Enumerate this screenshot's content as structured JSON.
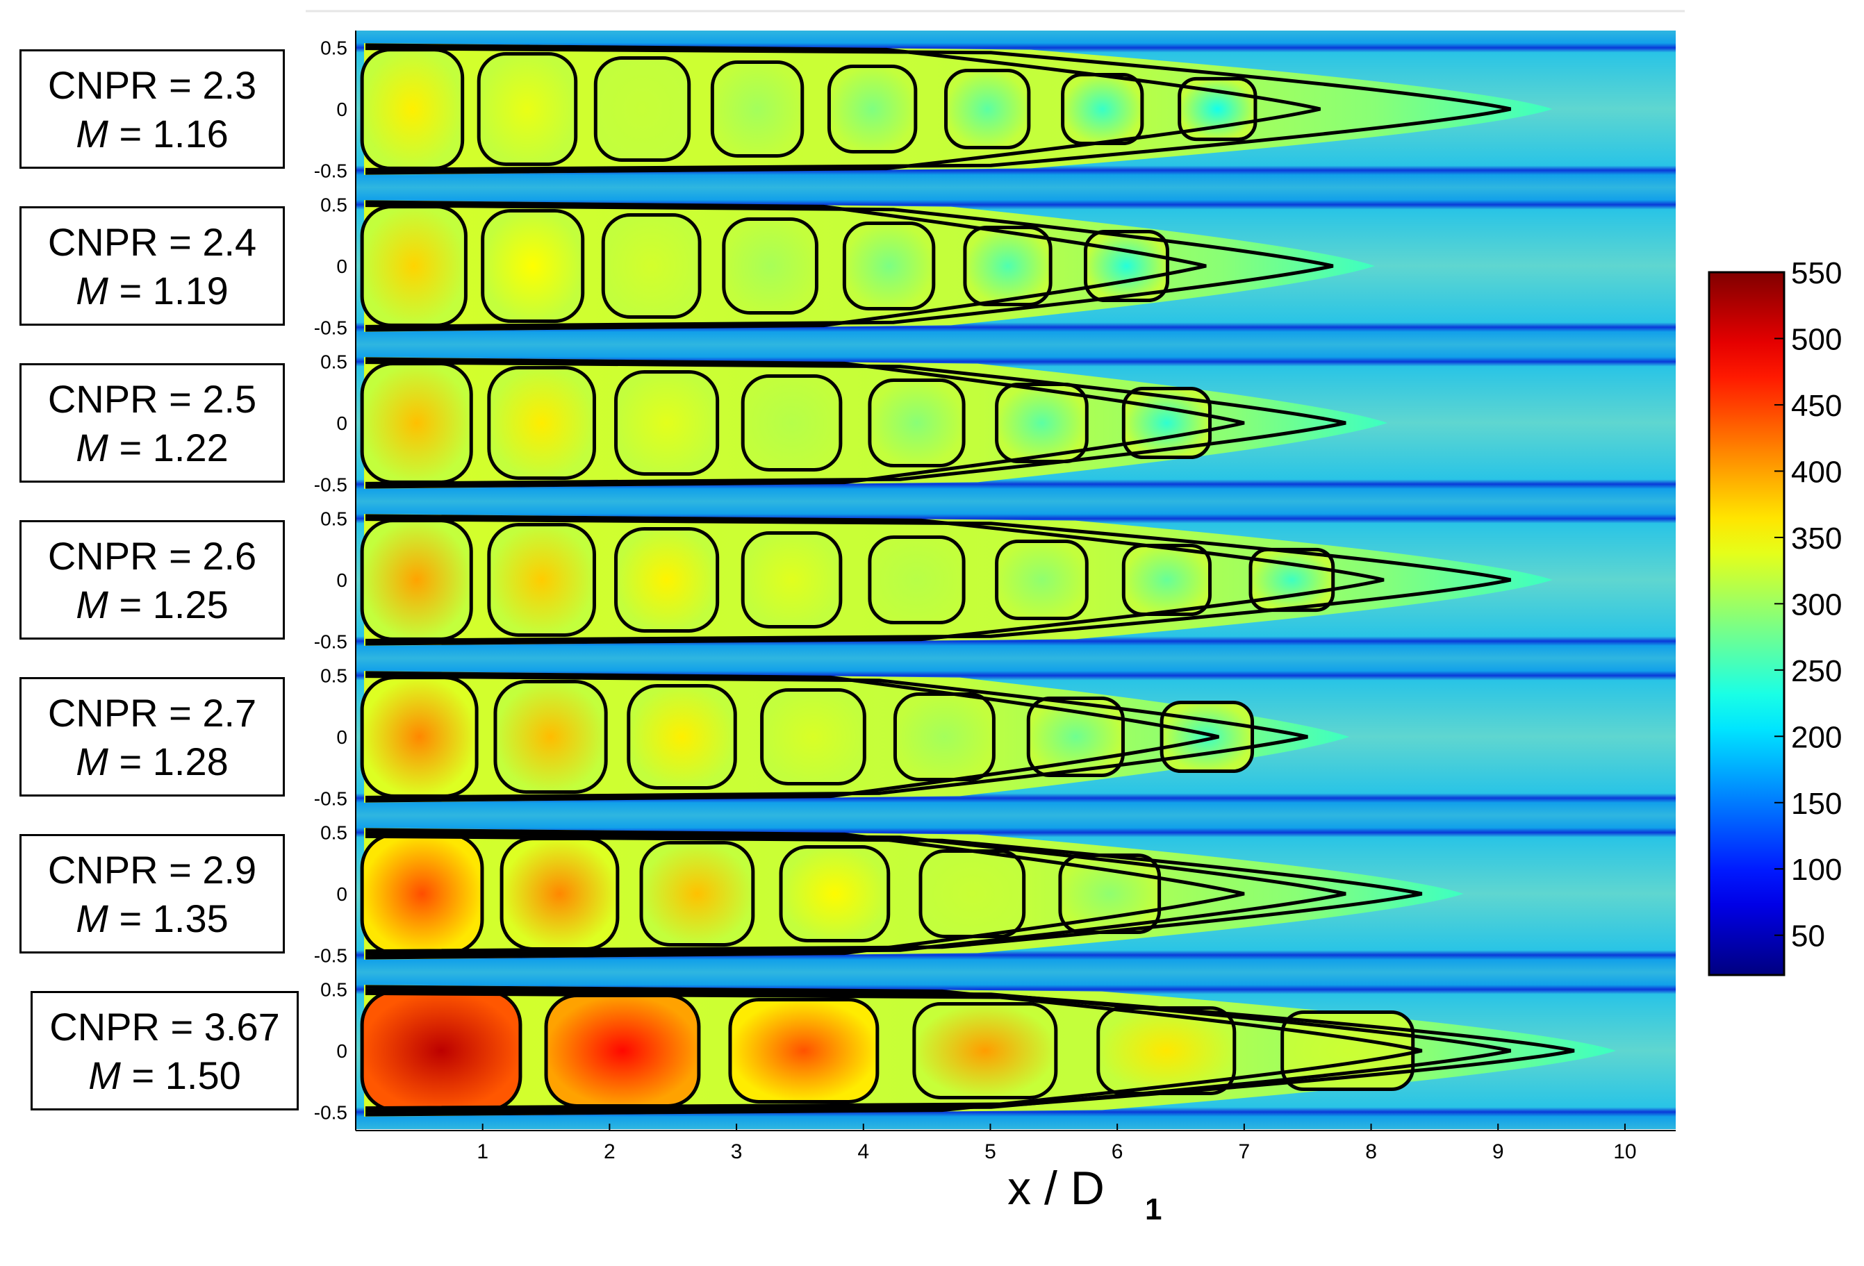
{
  "chart_data": {
    "type": "heatmap",
    "title": "",
    "xlabel": "x / D",
    "xlabel_sub": "1",
    "ylabel": "",
    "xlim": [
      0,
      10.4
    ],
    "ylim": [
      -0.55,
      0.55
    ],
    "x_ticks": [
      1,
      2,
      3,
      4,
      5,
      6,
      7,
      8,
      9,
      10
    ],
    "y_ticks": [
      -0.5,
      0,
      0.5
    ],
    "y_tick_labels": [
      "-0.5",
      "0",
      "0.5"
    ],
    "colorbar": {
      "min": 20,
      "max": 550,
      "ticks": [
        50,
        100,
        150,
        200,
        250,
        300,
        350,
        400,
        450,
        500,
        550
      ],
      "colormap": "jet"
    },
    "panels": [
      {
        "cnpr": "2.3",
        "mach": "1.16",
        "peak": 360,
        "cell": 0.92,
        "contour_ends": [
          7.6,
          9.1
        ]
      },
      {
        "cnpr": "2.4",
        "mach": "1.19",
        "peak": 375,
        "cell": 0.95,
        "contour_ends": [
          6.7,
          7.7
        ]
      },
      {
        "cnpr": "2.5",
        "mach": "1.22",
        "peak": 385,
        "cell": 1.0,
        "contour_ends": [
          7.0,
          7.8
        ]
      },
      {
        "cnpr": "2.6",
        "mach": "1.25",
        "peak": 400,
        "cell": 1.0,
        "contour_ends": [
          8.1,
          9.1
        ]
      },
      {
        "cnpr": "2.7",
        "mach": "1.28",
        "peak": 415,
        "cell": 1.05,
        "contour_ends": [
          6.8,
          7.5
        ]
      },
      {
        "cnpr": "2.9",
        "mach": "1.35",
        "peak": 445,
        "cell": 1.1,
        "contour_ends": [
          7.0,
          7.8,
          8.4
        ]
      },
      {
        "cnpr": "3.67",
        "mach": "1.50",
        "peak": 520,
        "cell": 1.45,
        "contour_ends": [
          8.4,
          9.1,
          9.6
        ]
      }
    ]
  },
  "labels": {
    "cnpr_prefix": "CNPR = ",
    "mach_symbol": "M",
    "mach_eq": " = "
  }
}
